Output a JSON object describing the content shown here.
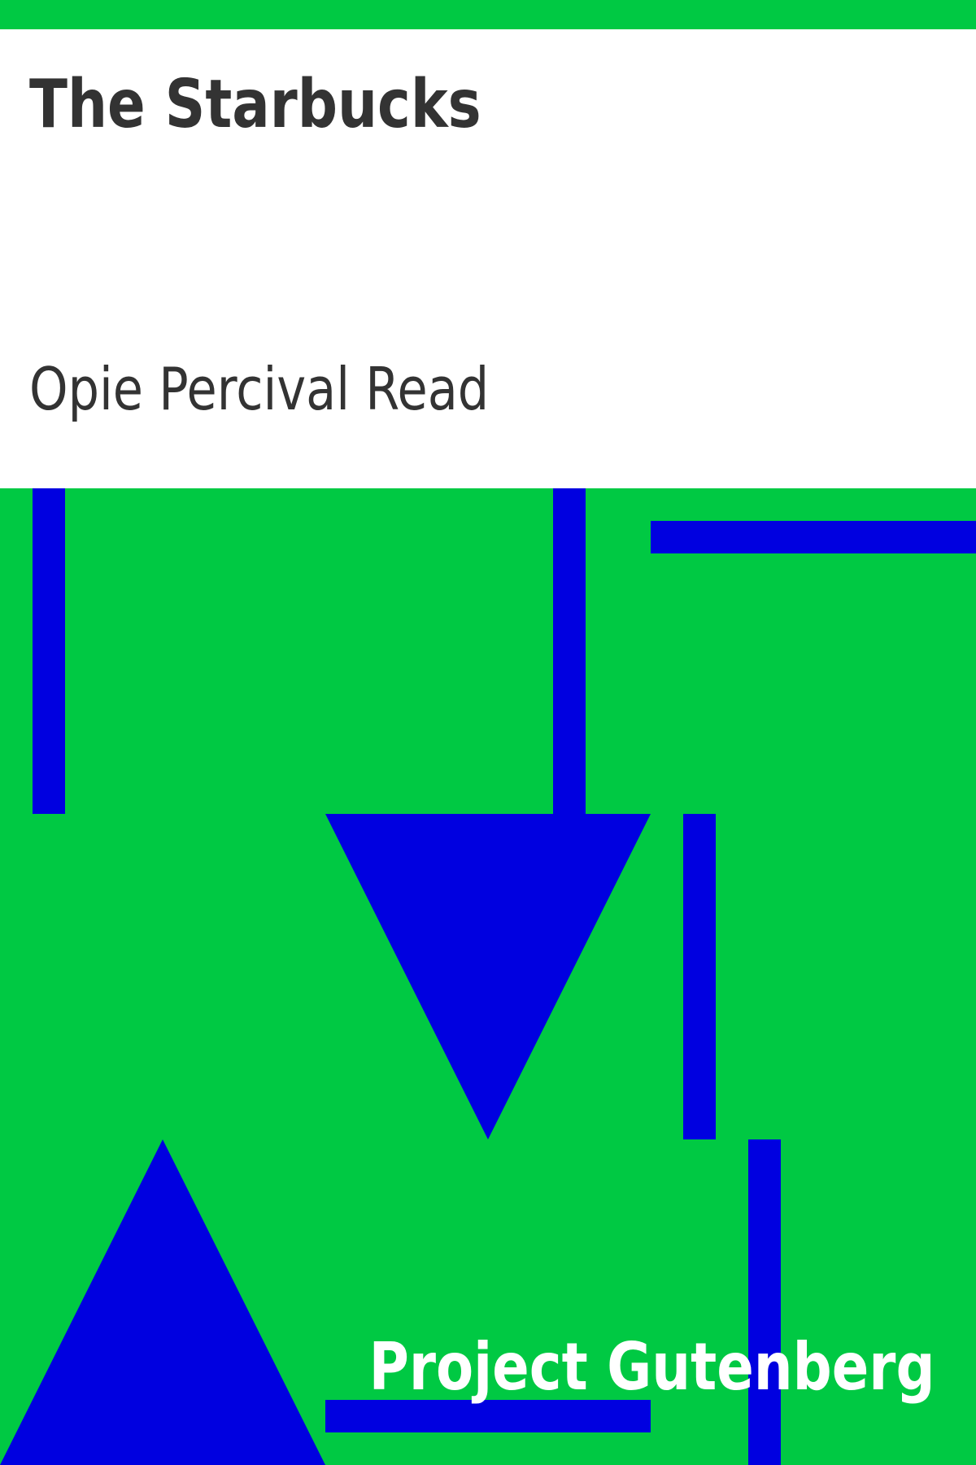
{
  "cover": {
    "title": "The Starbucks",
    "author": "Opie Percival Read",
    "publisher": "Project Gutenberg"
  },
  "colors": {
    "background": "#00c943",
    "panel": "#ffffff",
    "text": "#333333",
    "shapes": "#0000e0",
    "publisher_text": "#ffffff"
  }
}
